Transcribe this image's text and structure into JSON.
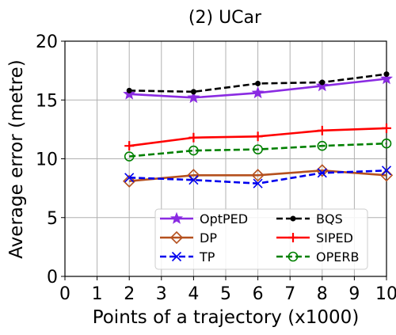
{
  "chart_data": {
    "type": "line",
    "title": "(2) UCar",
    "xlabel": "Points of a trajectory (x1000)",
    "ylabel": "Average error (metre)",
    "xlim": [
      0,
      10
    ],
    "ylim": [
      0,
      20
    ],
    "x_ticks": [
      "0",
      "1",
      "2",
      "3",
      "4",
      "5",
      "6",
      "7",
      "8",
      "9",
      "10"
    ],
    "y_ticks": [
      "0",
      "5",
      "10",
      "15",
      "20"
    ],
    "grid": true,
    "legend_position": "lower-right",
    "legend_columns": 2,
    "x": [
      2,
      4,
      6,
      8,
      10
    ],
    "series": [
      {
        "name": "OptPED",
        "values": [
          15.5,
          15.2,
          15.6,
          16.2,
          16.8
        ],
        "color": "#8a2be2",
        "line_style": "solid",
        "marker": "star"
      },
      {
        "name": "BQS",
        "values": [
          15.8,
          15.7,
          16.4,
          16.5,
          17.2
        ],
        "color": "#000000",
        "line_style": "dashed",
        "marker": "dot"
      },
      {
        "name": "DP",
        "values": [
          8.1,
          8.6,
          8.6,
          9.0,
          8.6
        ],
        "color": "#b5501e",
        "line_style": "solid",
        "marker": "diamond"
      },
      {
        "name": "SIPED",
        "values": [
          11.1,
          11.8,
          11.9,
          12.4,
          12.6
        ],
        "color": "#ff0000",
        "line_style": "solid",
        "marker": "plus"
      },
      {
        "name": "TP",
        "values": [
          8.4,
          8.2,
          7.9,
          8.8,
          9.0
        ],
        "color": "#0000ee",
        "line_style": "dashed",
        "marker": "x"
      },
      {
        "name": "OPERB",
        "values": [
          10.2,
          10.7,
          10.8,
          11.1,
          11.3
        ],
        "color": "#008000",
        "line_style": "dashed",
        "marker": "circle-open"
      }
    ]
  }
}
